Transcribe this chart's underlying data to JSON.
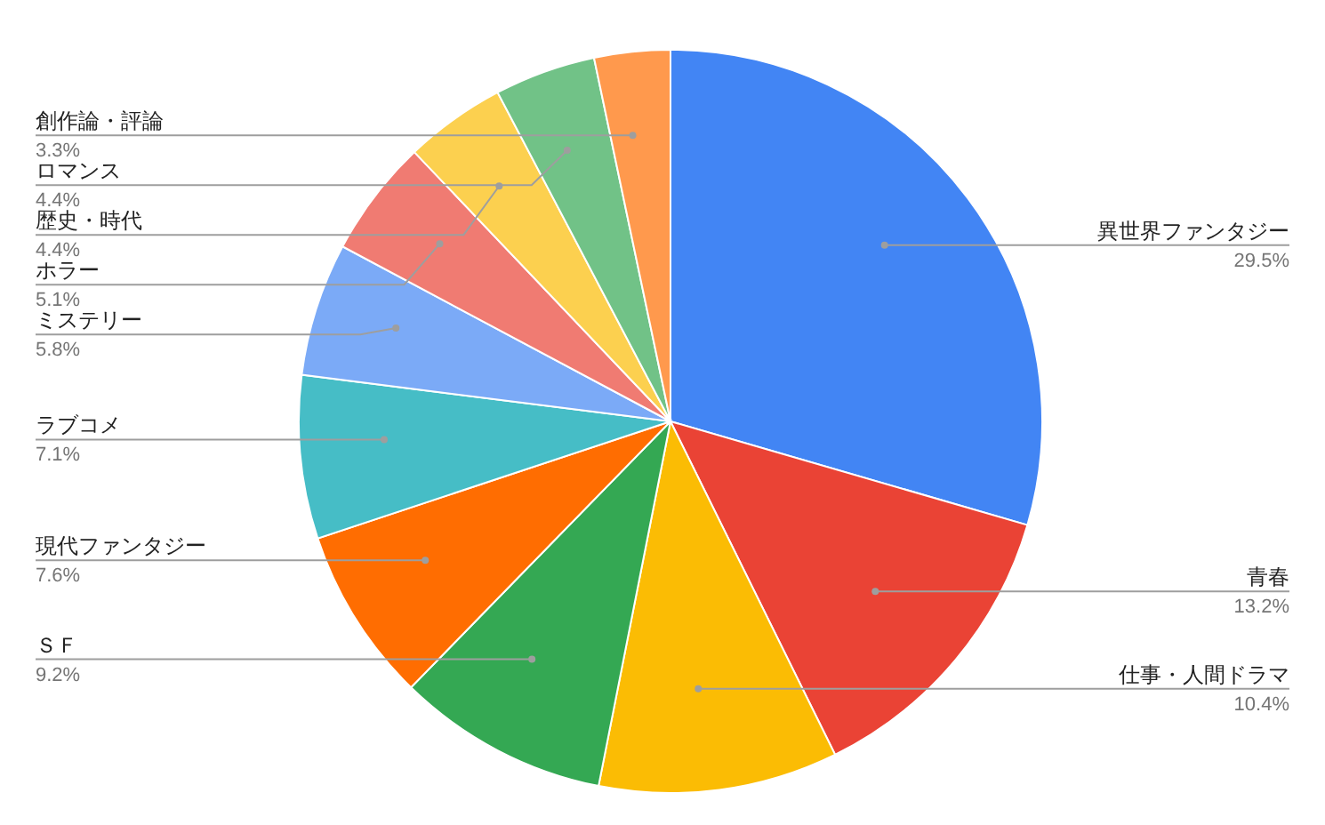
{
  "chart_data": {
    "type": "pie",
    "categories": [
      "異世界ファンタジー",
      "青春",
      "仕事・人間ドラマ",
      "ＳＦ",
      "現代ファンタジー",
      "ラブコメ",
      "ミステリー",
      "ホラー",
      "歴史・時代",
      "ロマンス",
      "創作論・評論"
    ],
    "values": [
      29.5,
      13.2,
      10.4,
      9.2,
      7.6,
      7.1,
      5.8,
      5.1,
      4.4,
      4.4,
      3.3
    ],
    "value_labels": [
      "29.5%",
      "13.2%",
      "10.4%",
      "9.2%",
      "7.6%",
      "7.1%",
      "5.8%",
      "5.1%",
      "4.4%",
      "4.4%",
      "3.3%"
    ],
    "colors": [
      "#4285f4",
      "#ea4335",
      "#fbbc04",
      "#34a853",
      "#ff6d01",
      "#46bdc6",
      "#7baaf7",
      "#f07b72",
      "#fcd04f",
      "#71c287",
      "#ff994d"
    ],
    "legend": false
  }
}
